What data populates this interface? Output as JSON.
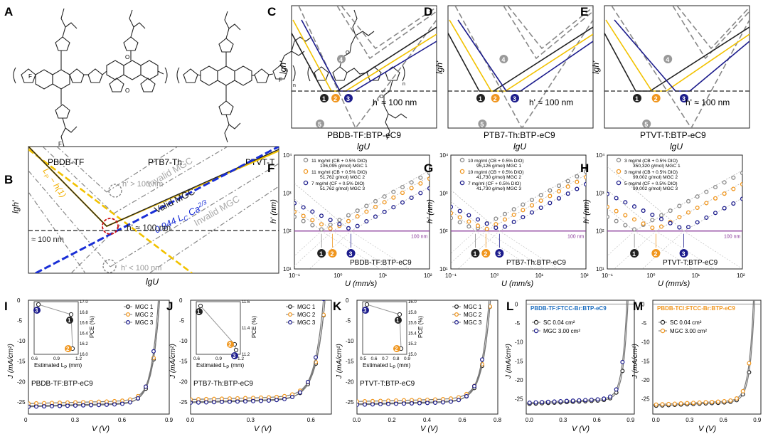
{
  "labels": {
    "A": "A",
    "B": "B",
    "C": "C",
    "D": "D",
    "E": "E",
    "F": "F",
    "G": "G",
    "H": "H",
    "I": "I",
    "J": "J",
    "K": "K",
    "L": "L",
    "M": "M"
  },
  "colors": {
    "mgc1": "#222222",
    "mgc2": "#f0961e",
    "mgc3": "#1c1c8c",
    "blueDash": "#1a2fd6",
    "yellow": "#f2c200",
    "purple": "#8a3a9a",
    "gray": "#888888",
    "darkblue": "#1a2a80"
  },
  "panelA": {
    "names": [
      "PBDB-TF",
      "PTB7-Th",
      "PTVT-T"
    ]
  },
  "panelB": {
    "xlabel": "lgU",
    "ylabel": "lgh'",
    "invalid_top": "Invalid MGC",
    "invalid_bottom": "Invalid MGC",
    "valid": "Valid MGC",
    "formula": "0.944 L",
    "formula_sub": "C",
    "formula_ca": " Ca",
    "formula_exp": "2/3",
    "lp": "L",
    "lp_sub": "P",
    "lp_rest": " − h(1)",
    "gt100": "h' > 100 nm",
    "eq100": "h' ≈ 100 nm",
    "lt100": "h' < 100 nm",
    "approx": "≈ 100 nm"
  },
  "panelsCDE": [
    {
      "id": "C",
      "title": "PBDB-TF:BTP-eC9",
      "h": "h' ≈ 100 nm",
      "xlabel": "lgU",
      "ylabel": "lgh'"
    },
    {
      "id": "D",
      "title": "PTB7-Th:BTP-eC9",
      "h": "h' ≈ 100 nm",
      "xlabel": "lgU",
      "ylabel": "lgh'"
    },
    {
      "id": "E",
      "title": "PTVT-T:BTP-eC9",
      "h": "h' ≈ 100 nm",
      "xlabel": "lgU",
      "ylabel": "lgh'"
    }
  ],
  "nums": [
    "1",
    "2",
    "3",
    "4",
    "5"
  ],
  "panelsFGH": [
    {
      "id": "F",
      "title": "PBDB-TF:BTP-eC9",
      "xlabel": "U (mm/s)",
      "ylabel": "h' (nm)",
      "line": "100 nm",
      "legend": [
        [
          "11 mg/ml (CB + 0.5% DIO)",
          "106,095 g/mol)  MGC 1"
        ],
        [
          "11 mg/ml (CB + 0.5% DIO)",
          "51,762 g/mol)   MGC 2"
        ],
        [
          "7 mg/ml (CF + 0.5% DIO)",
          "51,762 g/mol)   MGC 3"
        ]
      ],
      "min": [
        0.4,
        0.7,
        1.8
      ]
    },
    {
      "id": "G",
      "title": "PTB7-Th:BTP-eC9",
      "xlabel": "U (mm/s)",
      "ylabel": "h' (nm)",
      "line": "100 nm",
      "legend": [
        [
          "10 mg/ml (CB + 0.5% DIO)",
          "95,126 g/mol)   MGC 1"
        ],
        [
          "10 mg/ml (CB + 0.5% DIO)",
          "41,730 g/mol)   MGC 2"
        ],
        [
          "7 mg/ml (CF + 0.5% DIO)",
          "41,730 g/mol)   MGC 3"
        ]
      ],
      "min": [
        0.35,
        0.6,
        1.2
      ]
    },
    {
      "id": "H",
      "title": "PTVT-T:BTP-eC9",
      "xlabel": "U (mm/s)",
      "ylabel": "h' (nm)",
      "line": "100 nm",
      "legend": [
        [
          "3 mg/ml (CB + 0.5% DIO)",
          "350,320 g/mol)  MGC 1"
        ],
        [
          "3 mg/ml (CB + 0.5% DIO)",
          "99,002 g/mol)   MGC 2"
        ],
        [
          "5 mg/ml (CF + 0.5% DIO)",
          "99,002 g/mol)   MGC 3"
        ]
      ],
      "min": [
        0.4,
        1.2,
        5
      ]
    }
  ],
  "panelsIJK": [
    {
      "id": "I",
      "title": "PBDB-TF:BTP-eC9",
      "xmax": 0.9,
      "xticks": [
        "0",
        "0.3",
        "0.6",
        "0.9"
      ],
      "voc": 0.84,
      "jsc": 26,
      "inx": [
        "0.6",
        "0.9",
        "1.2"
      ],
      "iny": [
        "16.0",
        "16.2",
        "16.4",
        "16.6",
        "16.8",
        "17.0"
      ]
    },
    {
      "id": "J",
      "title": "PTB7-Th:BTP-eC9",
      "xmax": 0.7,
      "xticks": [
        "0.0",
        "0.3",
        "0.6"
      ],
      "voc": 0.67,
      "jsc": 25,
      "inx": [
        "0.6",
        "0.9",
        "1.2"
      ],
      "iny": [
        "11.2",
        "11.4",
        "11.6"
      ]
    },
    {
      "id": "K",
      "title": "PTVT-T:BTP-eC9",
      "xmax": 0.8,
      "xticks": [
        "0.0",
        "0.2",
        "0.4",
        "0.6",
        "0.8"
      ],
      "voc": 0.76,
      "jsc": 25.5,
      "inx": [
        "0.5",
        "0.6",
        "0.7",
        "0.8",
        "0.9"
      ],
      "iny": [
        "15.0",
        "15.2",
        "15.4",
        "15.6",
        "15.8",
        "16.0"
      ]
    }
  ],
  "ijkLegend": [
    "MGC 1",
    "MGC 2",
    "MGC 3"
  ],
  "ijkCommon": {
    "xlabel": "V (V)",
    "ylabel": "J (mA/cm²)",
    "inx": "Estimated L",
    "inxsub": "P",
    "inxunit": " (mm)",
    "iny": "PCE (%)",
    "yticks": [
      "0",
      "-5",
      "-10",
      "-15",
      "-20",
      "-25"
    ]
  },
  "panelsLM": [
    {
      "id": "L",
      "title": "PBDB-TF:FTCC-Br:BTP-eC9",
      "titleColor": "#1f6fc0",
      "s1": "SC 0.04 cm²",
      "s2": "MGC 3.00 cm²",
      "s2color": "#1c1c8c"
    },
    {
      "id": "M",
      "title": "PBDB-TCl:FTCC-Br:BTP-eC9",
      "titleColor": "#f0961e",
      "s1": "SC 0.04 cm²",
      "s2": "MGC 3.00 cm²",
      "s2color": "#f0961e"
    }
  ],
  "lmCommon": {
    "xlabel": "V (V)",
    "ylabel": "J (mA/cm²)",
    "xticks": [
      "0.0",
      "0.3",
      "0.6",
      "0.9"
    ],
    "yticks": [
      "0",
      "-5",
      "-10",
      "-15",
      "-20",
      "-25"
    ]
  }
}
